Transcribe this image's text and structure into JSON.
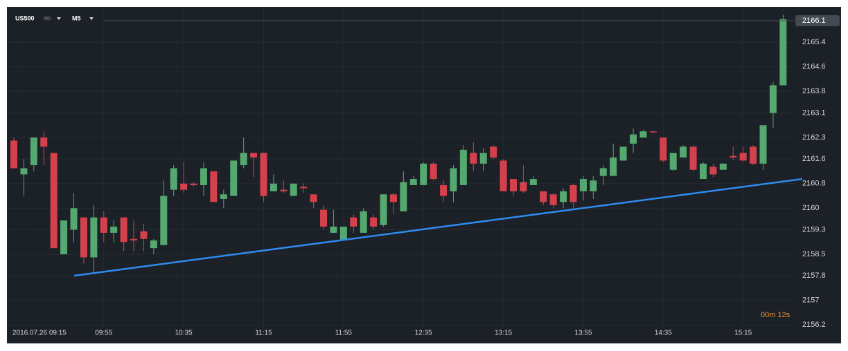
{
  "chart_data": {
    "type": "candlestick",
    "symbol": "US500",
    "symbol_tag": "IND",
    "timeframe": "M5",
    "timer": "00m 12s",
    "last_price": 2166.1,
    "up_color": "#55a86f",
    "down_color": "#d3414c",
    "categories": [
      null,
      "2016.07.26  09:15",
      null,
      null,
      null,
      null,
      null,
      null,
      null,
      "09:55",
      null,
      null,
      null,
      null,
      null,
      null,
      null,
      "10:35",
      null,
      null,
      null,
      null,
      null,
      null,
      null,
      "11:15",
      null,
      null,
      null,
      null,
      null,
      null,
      null,
      "11:55",
      null,
      null,
      null,
      null,
      null,
      null,
      null,
      "12:35",
      null,
      null,
      null,
      null,
      null,
      null,
      null,
      "13:15",
      null,
      null,
      null,
      null,
      null,
      null,
      null,
      "13:55",
      null,
      null,
      null,
      null,
      null,
      null,
      null,
      "14:35",
      null,
      null,
      null,
      null,
      null,
      null,
      null,
      "15:15",
      null,
      null,
      null,
      null
    ],
    "open": [
      2162.2,
      2161.1,
      2161.4,
      2162.3,
      2161.8,
      2158.5,
      2159.3,
      2159.7,
      2158.4,
      2159.7,
      2159.2,
      2159.7,
      2159.0,
      2159.25,
      2158.7,
      2158.8,
      2160.6,
      2160.8,
      2160.8,
      2160.75,
      2161.2,
      2160.3,
      2160.4,
      2161.4,
      2161.8,
      2161.8,
      2160.55,
      2160.6,
      2160.4,
      2160.7,
      2160.45,
      2159.95,
      2159.2,
      2158.95,
      2159.7,
      2159.2,
      2159.7,
      2159.45,
      2160.45,
      2159.9,
      2160.75,
      2160.75,
      2161.45,
      2160.75,
      2160.55,
      2160.75,
      2161.8,
      2161.45,
      2162.0,
      2161.55,
      2160.95,
      2160.85,
      2160.75,
      2160.55,
      2160.45,
      2160.2,
      2160.75,
      2160.55,
      2160.55,
      2161.05,
      2161.05,
      2161.55,
      2162.1,
      2162.3,
      2162.5,
      2162.3,
      2161.25,
      2161.65,
      2162.0,
      2160.95,
      2161.35,
      2161.25,
      2161.7,
      2161.8,
      2162.0,
      2161.45,
      2163.1,
      2164.0
    ],
    "high": [
      2162.3,
      2161.6,
      2162.3,
      2162.5,
      2161.8,
      2159.6,
      2160.5,
      2159.7,
      2160.1,
      2159.9,
      2159.6,
      2159.7,
      2159.6,
      2159.5,
      2159.0,
      2160.9,
      2161.4,
      2161.5,
      2160.85,
      2161.5,
      2161.2,
      2160.6,
      2161.55,
      2162.3,
      2161.8,
      2161.8,
      2161.1,
      2160.9,
      2160.8,
      2160.8,
      2160.45,
      2160.1,
      2159.95,
      2159.4,
      2159.8,
      2160.0,
      2159.8,
      2160.45,
      2160.5,
      2161.2,
      2161.05,
      2161.5,
      2161.5,
      2160.9,
      2161.4,
      2162.05,
      2162.15,
      2161.95,
      2162.05,
      2161.6,
      2160.95,
      2161.4,
      2161.05,
      2160.55,
      2160.5,
      2160.65,
      2160.8,
      2161.05,
      2161.05,
      2161.4,
      2162.1,
      2162.0,
      2162.6,
      2162.55,
      2162.5,
      2162.3,
      2161.8,
      2162.05,
      2162.05,
      2161.5,
      2161.45,
      2161.45,
      2162.0,
      2162.0,
      2162.05,
      2162.7,
      2164.1,
      2166.3
    ],
    "low": [
      2161.3,
      2160.4,
      2161.2,
      2161.4,
      2158.7,
      2158.5,
      2158.9,
      2158.2,
      2157.9,
      2158.9,
      2158.9,
      2158.6,
      2158.6,
      2158.6,
      2158.5,
      2158.8,
      2160.4,
      2160.5,
      2160.7,
      2160.4,
      2160.2,
      2160.0,
      2160.4,
      2161.3,
      2161.0,
      2160.2,
      2160.55,
      2160.5,
      2160.4,
      2160.5,
      2160.0,
      2159.3,
      2159.2,
      2158.95,
      2159.2,
      2159.2,
      2159.3,
      2159.4,
      2159.8,
      2159.9,
      2160.75,
      2160.75,
      2160.9,
      2160.2,
      2160.2,
      2160.75,
      2161.2,
      2161.2,
      2161.6,
      2160.55,
      2160.4,
      2160.5,
      2160.75,
      2160.1,
      2160.0,
      2160.0,
      2160.0,
      2160.25,
      2160.3,
      2160.75,
      2161.05,
      2161.55,
      2161.8,
      2162.3,
      2162.45,
      2161.5,
      2161.2,
      2161.65,
      2161.2,
      2160.95,
      2161.0,
      2161.25,
      2161.55,
      2161.5,
      2161.4,
      2161.25,
      2162.6,
      2164.0
    ],
    "close": [
      2161.3,
      2161.3,
      2162.3,
      2162.0,
      2158.7,
      2159.6,
      2160.0,
      2158.4,
      2159.7,
      2159.2,
      2159.4,
      2158.9,
      2158.95,
      2159.0,
      2158.95,
      2160.4,
      2161.3,
      2160.6,
      2160.75,
      2161.3,
      2160.2,
      2160.45,
      2161.55,
      2161.8,
      2161.65,
      2160.4,
      2160.8,
      2160.55,
      2160.8,
      2160.65,
      2160.2,
      2159.4,
      2159.4,
      2159.4,
      2159.4,
      2159.9,
      2159.4,
      2160.45,
      2160.2,
      2160.85,
      2160.95,
      2161.45,
      2160.95,
      2160.4,
      2161.3,
      2161.9,
      2161.45,
      2161.8,
      2161.65,
      2160.55,
      2160.55,
      2160.55,
      2160.95,
      2160.2,
      2160.1,
      2160.55,
      2160.2,
      2160.95,
      2160.9,
      2161.3,
      2161.65,
      2162.0,
      2162.4,
      2162.5,
      2162.47,
      2161.55,
      2161.8,
      2162.0,
      2161.25,
      2161.45,
      2161.1,
      2161.45,
      2161.65,
      2161.55,
      2161.45,
      2162.7,
      2164.0,
      2166.15
    ],
    "ylim": [
      2155.6,
      2166.55
    ],
    "yticks": [
      2165.4,
      2164.6,
      2163.8,
      2163.1,
      2162.3,
      2161.6,
      2160.8,
      2160.0,
      2159.3,
      2158.5,
      2157.8,
      2157.0,
      2156.2
    ],
    "grid": true
  }
}
